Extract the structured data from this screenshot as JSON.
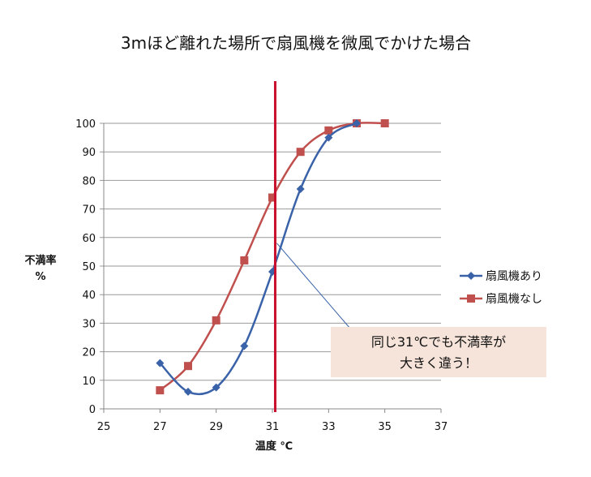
{
  "chart_data": {
    "type": "line",
    "title": "3mほど離れた場所で扇風機を微風でかけた場合",
    "xlabel": "温度 ℃",
    "ylabel_line1": "不満率",
    "ylabel_line2": "%",
    "xlim": [
      25,
      37
    ],
    "ylim": [
      0,
      100
    ],
    "xticks": [
      25,
      27,
      29,
      31,
      33,
      35,
      37
    ],
    "yticks": [
      0,
      10,
      20,
      30,
      40,
      50,
      60,
      70,
      80,
      90,
      100
    ],
    "grid": "horizontal",
    "legend_position": "right",
    "smooth": true,
    "series": [
      {
        "name": "扇風機あり",
        "color": "#3a62a8",
        "marker": "diamond",
        "x": [
          27,
          28,
          29,
          30,
          31,
          32,
          33,
          34
        ],
        "y": [
          16,
          6,
          7.5,
          22,
          48,
          77,
          95,
          100
        ]
      },
      {
        "name": "扇風機なし",
        "color": "#c0504d",
        "marker": "square",
        "x": [
          27,
          28,
          29,
          30,
          31,
          32,
          33,
          34,
          35
        ],
        "y": [
          6.5,
          15,
          31,
          52,
          74,
          90,
          97.5,
          100,
          100
        ]
      }
    ],
    "reference_line": {
      "x": 31.1,
      "color": "#c8102e"
    },
    "annotation": {
      "line1": "同じ31℃でも不満率が",
      "line2": "大きく違う！",
      "x": 31.1,
      "y": 58
    }
  }
}
